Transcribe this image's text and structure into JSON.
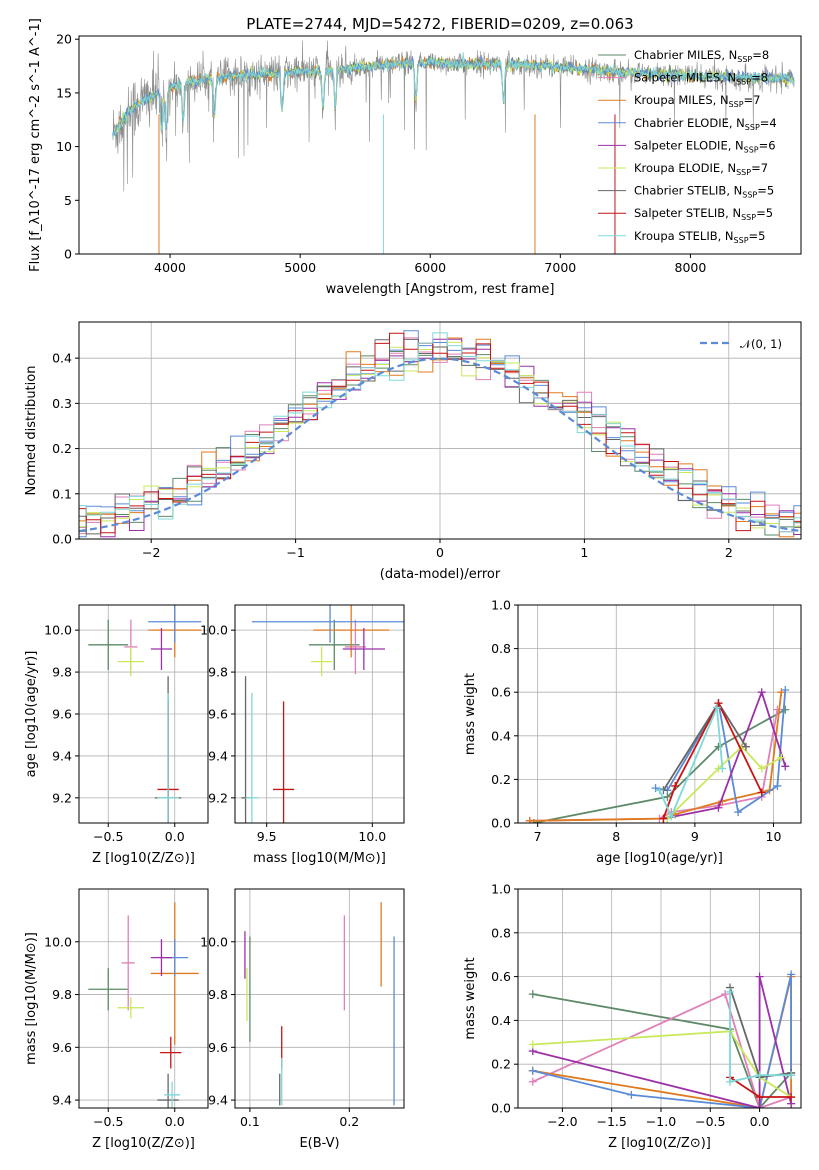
{
  "colors": [
    "#5e8a6a",
    "#e07fb8",
    "#e07a1f",
    "#5b8bd8",
    "#9b30a8",
    "#c9e85a",
    "#666666",
    "#c81414",
    "#7ed8d8"
  ],
  "chart_data": [
    {
      "type": "line",
      "title": "PLATE=2744, MJD=54272, FIBERID=0209, z=0.063",
      "xlabel": "wavelength [Angstrom, rest frame]",
      "ylabel": "Flux [f_λ10^-17 erg cm^-2 s^-1 A^-1]",
      "xlim": [
        3300,
        8850
      ],
      "ylim": [
        0,
        20.3
      ],
      "xticks": [
        4000,
        5000,
        6000,
        7000,
        8000
      ],
      "yticks": [
        0,
        5,
        10,
        15,
        20
      ],
      "legend_placement": "top-right",
      "series": [
        {
          "name": "Chabrier MILES, N_SSP=8"
        },
        {
          "name": "Salpeter MILES, N_SSP=8"
        },
        {
          "name": "Kroupa MILES, N_SSP=7"
        },
        {
          "name": "Chabrier ELODIE, N_SSP=4"
        },
        {
          "name": "Salpeter ELODIE, N_SSP=6"
        },
        {
          "name": "Kroupa ELODIE, N_SSP=7"
        },
        {
          "name": "Chabrier STELIB, N_SSP=5"
        },
        {
          "name": "Salpeter STELIB, N_SSP=5"
        },
        {
          "name": "Kroupa STELIB, N_SSP=5"
        }
      ],
      "continuum_x": [
        3550,
        3700,
        3900,
        4100,
        4300,
        4500,
        4800,
        5100,
        5400,
        5700,
        6000,
        6300,
        6600,
        6900,
        7200,
        7500,
        7800,
        8100,
        8400,
        8800
      ],
      "continuum_y": [
        11,
        13.5,
        15,
        16,
        16.3,
        16.6,
        16.8,
        17,
        17.3,
        17.7,
        17.8,
        17.7,
        17.7,
        17.5,
        17.2,
        16.9,
        16.7,
        16.6,
        16.4,
        16.3
      ]
    },
    {
      "type": "bar",
      "xlabel": "(data-model)/error",
      "ylabel": "Normed distribution",
      "xlim": [
        -2.5,
        2.5
      ],
      "ylim": [
        0,
        0.48
      ],
      "xticks": [
        -2,
        -1,
        0,
        1,
        2
      ],
      "yticks": [
        0.0,
        0.1,
        0.2,
        0.3,
        0.4
      ],
      "legend_placement": "top-right",
      "reference": {
        "name": "𝒩(0, 1)",
        "mean": 0,
        "sigma": 1
      },
      "bin_width": 0.1
    },
    {
      "type": "scatter",
      "xlabel": "Z [log10(Z/Z⊙)]",
      "ylabel": "age  [log10(age/yr)]",
      "xlim": [
        -0.72,
        0.25
      ],
      "ylim": [
        9.08,
        10.12
      ],
      "xticks": [
        -0.5,
        0.0
      ],
      "yticks": [
        9.2,
        9.4,
        9.6,
        9.8,
        10.0
      ],
      "points": [
        {
          "x": -0.5,
          "y": 9.93,
          "xerr": 0.15,
          "yerr": 0.12
        },
        {
          "x": -0.33,
          "y": 9.92,
          "xerr": 0.05,
          "yerr": 0.13
        },
        {
          "x": 0.0,
          "y": 10.0,
          "xerr": 0.2,
          "yerr": 0.13
        },
        {
          "x": 0.0,
          "y": 10.04,
          "xerr": 0.2,
          "yerr": 0.1
        },
        {
          "x": -0.1,
          "y": 9.91,
          "xerr": 0.08,
          "yerr": 0.1
        },
        {
          "x": -0.33,
          "y": 9.85,
          "xerr": 0.1,
          "yerr": 0.07
        },
        {
          "x": -0.05,
          "y": 9.2,
          "xerr": 0.1,
          "yerr": 0.58
        },
        {
          "x": -0.05,
          "y": 9.24,
          "xerr": 0.08,
          "yerr": 0.42
        },
        {
          "x": -0.05,
          "y": 9.2,
          "xerr": 0.08,
          "yerr": 0.5
        }
      ]
    },
    {
      "type": "scatter",
      "xlabel": "mass [log10(M/M⊙)]",
      "ylabel": "",
      "xlim": [
        9.35,
        10.15
      ],
      "ylim": [
        9.08,
        10.12
      ],
      "xticks": [
        9.5,
        10.0
      ],
      "yticks": [
        9.2,
        9.4,
        9.6,
        9.8,
        10.0
      ],
      "points": [
        {
          "x": 9.82,
          "y": 9.93,
          "xerr": 0.12,
          "yerr": 0.12
        },
        {
          "x": 9.92,
          "y": 9.92,
          "xerr": 0.05,
          "yerr": 0.13
        },
        {
          "x": 9.9,
          "y": 10.0,
          "xerr": 0.18,
          "yerr": 0.13
        },
        {
          "x": 9.8,
          "y": 10.04,
          "xerr": 0.37,
          "yerr": 0.1
        },
        {
          "x": 9.96,
          "y": 9.91,
          "xerr": 0.1,
          "yerr": 0.1
        },
        {
          "x": 9.76,
          "y": 9.85,
          "xerr": 0.05,
          "yerr": 0.07
        },
        {
          "x": 9.4,
          "y": 9.2,
          "xerr": 0.02,
          "yerr": 0.58
        },
        {
          "x": 9.58,
          "y": 9.24,
          "xerr": 0.05,
          "yerr": 0.42
        },
        {
          "x": 9.43,
          "y": 9.2,
          "xerr": 0.03,
          "yerr": 0.5
        }
      ]
    },
    {
      "type": "line",
      "xlabel": "age  [log10(age/yr)]",
      "ylabel": "mass weight",
      "xlim": [
        6.75,
        10.35
      ],
      "ylim": [
        0.0,
        1.0
      ],
      "xticks": [
        7,
        8,
        9,
        10
      ],
      "yticks": [
        0.0,
        0.2,
        0.4,
        0.6,
        0.8,
        1.0
      ],
      "series": [
        {
          "x": [
            6.95,
            8.65,
            9.3,
            10.15
          ],
          "y": [
            0.0,
            0.12,
            0.35,
            0.52
          ]
        },
        {
          "x": [
            6.9,
            8.55,
            8.7,
            9.3,
            9.85,
            10.05
          ],
          "y": [
            0.01,
            0.02,
            0.05,
            0.08,
            0.12,
            0.52
          ]
        },
        {
          "x": [
            6.9,
            8.6,
            8.75,
            9.35,
            9.95,
            10.1
          ],
          "y": [
            0.01,
            0.02,
            0.04,
            0.1,
            0.15,
            0.6
          ]
        },
        {
          "x": [
            8.5,
            8.65,
            9.3,
            9.55,
            10.05,
            10.15
          ],
          "y": [
            0.16,
            0.15,
            0.55,
            0.05,
            0.17,
            0.61
          ]
        },
        {
          "x": [
            8.6,
            9.3,
            9.85,
            10.15
          ],
          "y": [
            0.02,
            0.07,
            0.6,
            0.26
          ]
        },
        {
          "x": [
            8.65,
            9.3,
            9.6,
            9.85,
            10.1
          ],
          "y": [
            0.02,
            0.25,
            0.35,
            0.25,
            0.3
          ]
        },
        {
          "x": [
            8.6,
            9.3,
            9.65
          ],
          "y": [
            0.15,
            0.55,
            0.35
          ]
        },
        {
          "x": [
            8.6,
            8.75,
            9.3,
            9.85
          ],
          "y": [
            0.02,
            0.17,
            0.55,
            0.14
          ]
        },
        {
          "x": [
            8.55,
            8.7,
            9.28,
            9.35
          ],
          "y": [
            0.15,
            0.03,
            0.53,
            0.25
          ]
        }
      ]
    },
    {
      "type": "scatter",
      "xlabel": "Z [log10(Z/Z⊙)]",
      "ylabel": "mass [log10(M/M⊙)]",
      "xlim": [
        -0.72,
        0.25
      ],
      "ylim": [
        9.37,
        10.2
      ],
      "xticks": [
        -0.5,
        0.0
      ],
      "yticks": [
        9.4,
        9.6,
        9.8,
        10.0
      ],
      "points": [
        {
          "x": -0.5,
          "y": 9.82,
          "xerr": 0.15,
          "yerr": 0.08
        },
        {
          "x": -0.35,
          "y": 9.92,
          "xerr": 0.05,
          "yerr": 0.18
        },
        {
          "x": 0.0,
          "y": 9.88,
          "xerr": 0.18,
          "yerr": 0.27
        },
        {
          "x": 0.0,
          "y": 9.94,
          "xerr": 0.1,
          "yerr": 0.07
        },
        {
          "x": -0.1,
          "y": 9.94,
          "xerr": 0.08,
          "yerr": 0.07
        },
        {
          "x": -0.33,
          "y": 9.75,
          "xerr": 0.1,
          "yerr": 0.04
        },
        {
          "x": -0.05,
          "y": 9.4,
          "xerr": 0.08,
          "yerr": 0.1
        },
        {
          "x": -0.03,
          "y": 9.58,
          "xerr": 0.08,
          "yerr": 0.06
        },
        {
          "x": -0.02,
          "y": 9.42,
          "xerr": 0.06,
          "yerr": 0.05
        }
      ]
    },
    {
      "type": "scatter",
      "xlabel": "E(B-V)",
      "ylabel": "",
      "xlim": [
        0.085,
        0.255
      ],
      "ylim": [
        9.37,
        10.2
      ],
      "xticks": [
        0.1,
        0.2
      ],
      "yticks": [
        9.4,
        9.6,
        9.8,
        10.0
      ],
      "points": [
        {
          "x": 0.1,
          "y": 9.82,
          "xerr": 0.0,
          "yerr": 0.2
        },
        {
          "x": 0.195,
          "y": 9.92,
          "xerr": 0.0,
          "yerr": 0.18
        },
        {
          "x": 0.232,
          "y": 9.99,
          "xerr": 0.0,
          "yerr": 0.16
        },
        {
          "x": 0.245,
          "y": 9.7,
          "xerr": 0.0,
          "yerr": 0.32
        },
        {
          "x": 0.095,
          "y": 9.95,
          "xerr": 0.0,
          "yerr": 0.09
        },
        {
          "x": 0.097,
          "y": 9.8,
          "xerr": 0.0,
          "yerr": 0.1
        },
        {
          "x": 0.13,
          "y": 9.44,
          "xerr": 0.0,
          "yerr": 0.06
        },
        {
          "x": 0.132,
          "y": 9.6,
          "xerr": 0.0,
          "yerr": 0.08
        },
        {
          "x": 0.132,
          "y": 9.47,
          "xerr": 0.0,
          "yerr": 0.09
        }
      ]
    },
    {
      "type": "line",
      "xlabel": "Z [log10(Z/Z⊙)]",
      "ylabel": "mass weight",
      "xlim": [
        -2.45,
        0.42
      ],
      "ylim": [
        0.0,
        1.0
      ],
      "xticks": [
        -2.0,
        -1.5,
        -1.0,
        -0.5,
        0.0
      ],
      "yticks": [
        0.0,
        0.2,
        0.4,
        0.6,
        0.8,
        1.0
      ],
      "series": [
        {
          "x": [
            -2.3,
            -0.3,
            0.0,
            0.32
          ],
          "y": [
            0.52,
            0.36,
            0.0,
            0.16
          ]
        },
        {
          "x": [
            -2.3,
            -0.35,
            0.0,
            0.32
          ],
          "y": [
            0.12,
            0.52,
            0.0,
            0.05
          ]
        },
        {
          "x": [
            -2.3,
            0.0,
            0.32,
            0.32
          ],
          "y": [
            0.17,
            0.0,
            0.6,
            0.02
          ]
        },
        {
          "x": [
            -2.3,
            -1.3,
            0.0,
            0.32,
            0.32
          ],
          "y": [
            0.17,
            0.06,
            0.0,
            0.61,
            0.15
          ]
        },
        {
          "x": [
            -2.3,
            0.0,
            0.0,
            0.32
          ],
          "y": [
            0.26,
            0.0,
            0.6,
            0.02
          ]
        },
        {
          "x": [
            -2.3,
            -0.3,
            0.0,
            0.32
          ],
          "y": [
            0.29,
            0.35,
            0.14,
            0.05
          ]
        },
        {
          "x": [
            -0.3,
            0.0,
            0.32
          ],
          "y": [
            0.55,
            0.14,
            0.16
          ]
        },
        {
          "x": [
            -0.3,
            0.0,
            0.32
          ],
          "y": [
            0.14,
            0.05,
            0.05
          ]
        },
        {
          "x": [
            -0.3,
            -0.3,
            0.0,
            0.32
          ],
          "y": [
            0.53,
            0.12,
            0.15,
            0.15
          ]
        }
      ]
    }
  ]
}
